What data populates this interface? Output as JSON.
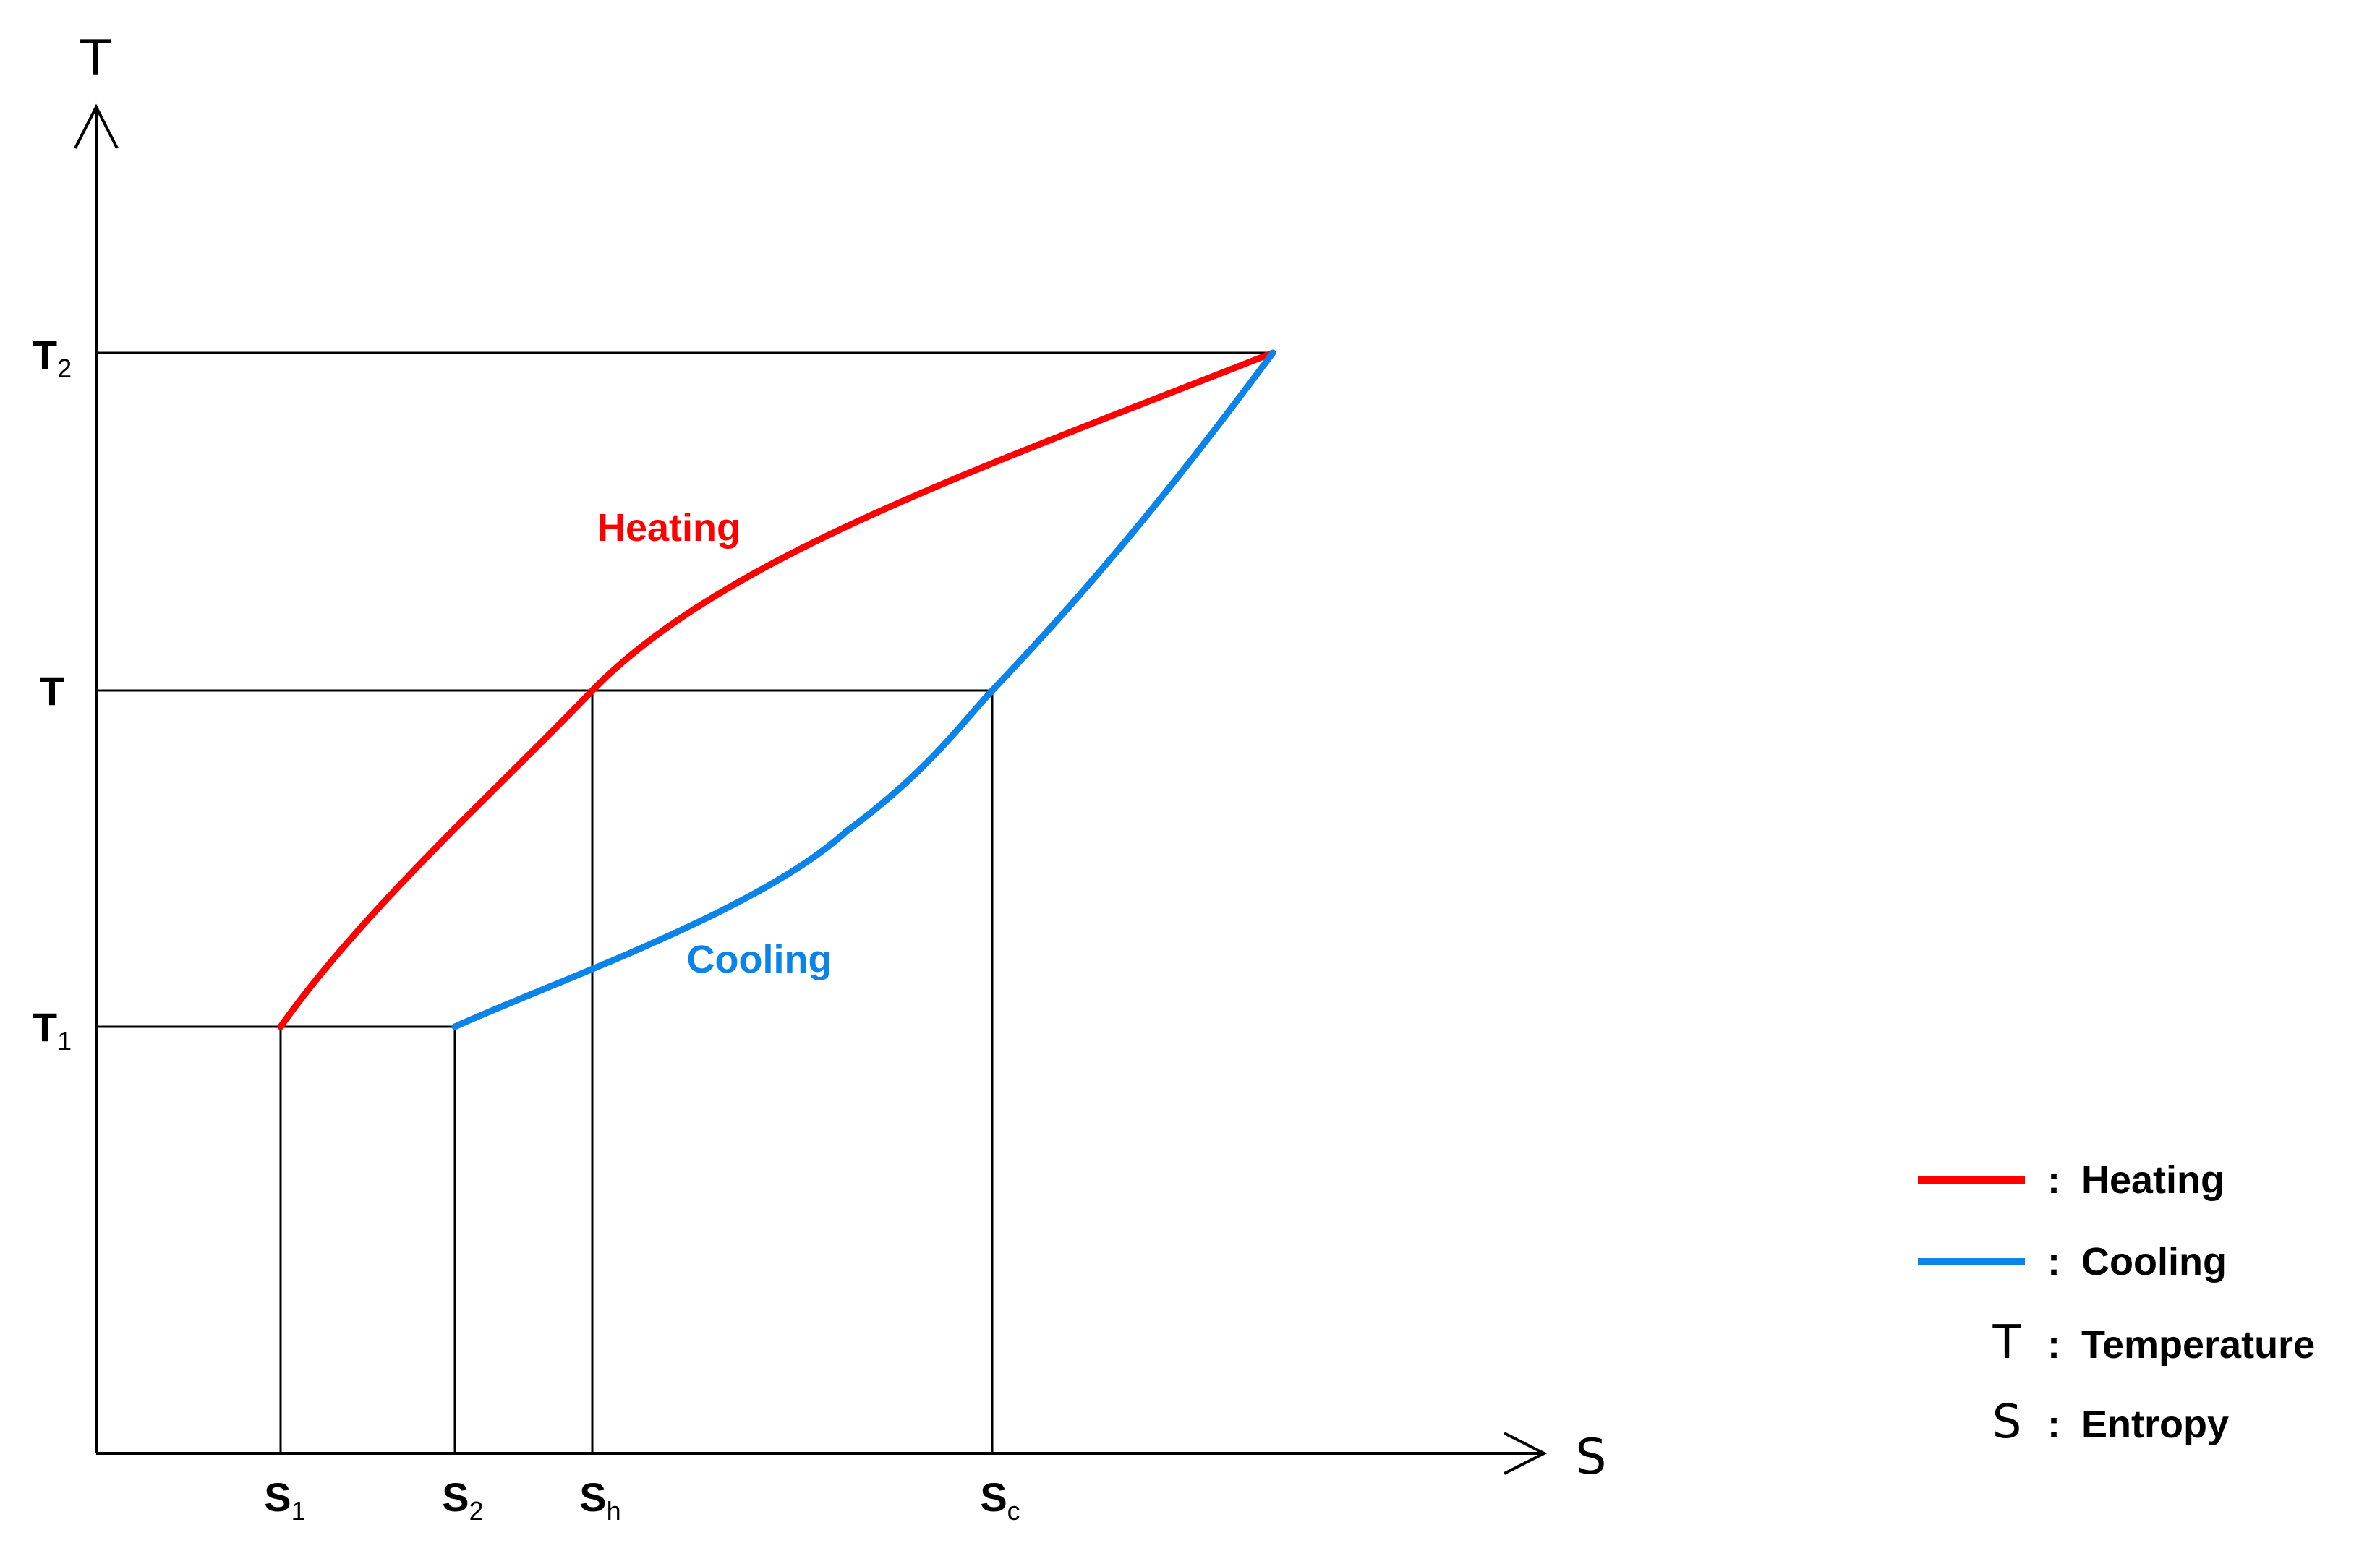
{
  "colors": {
    "heating": "#ff0000",
    "cooling": "#0a84e8",
    "axis": "#000000"
  },
  "axes": {
    "y_label": "T",
    "x_label": "S"
  },
  "y_ticks": [
    {
      "main": "T",
      "sub": "2"
    },
    {
      "main": "T",
      "sub": ""
    },
    {
      "main": "T",
      "sub": "1"
    }
  ],
  "x_ticks": [
    {
      "main": "S",
      "sub": "1"
    },
    {
      "main": "S",
      "sub": "2"
    },
    {
      "main": "S",
      "sub": "h"
    },
    {
      "main": "S",
      "sub": "c"
    }
  ],
  "curve_labels": {
    "heating": "Heating",
    "cooling": "Cooling"
  },
  "legend": [
    {
      "symbol": "",
      "colon": ":",
      "text": "Heating"
    },
    {
      "symbol": "",
      "colon": ":",
      "text": "Cooling"
    },
    {
      "symbol": "T",
      "colon": ":",
      "text": "Temperature"
    },
    {
      "symbol": "S",
      "colon": ":",
      "text": "Entropy"
    }
  ]
}
